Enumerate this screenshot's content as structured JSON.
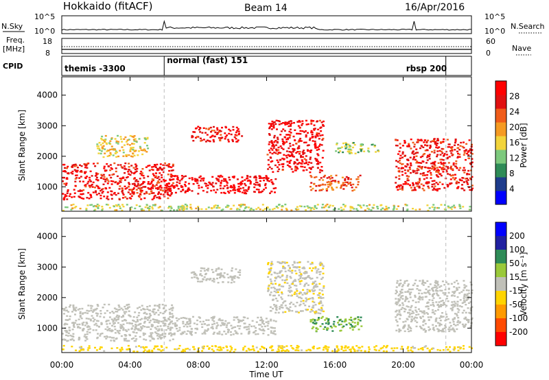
{
  "header": {
    "station": "Hokkaido (fitACF)",
    "beam": "Beam 14",
    "date": "16/Apr/2016"
  },
  "panels": {
    "nsky": {
      "label": "N.Sky",
      "left_ticks": [
        "10^5",
        "10^0"
      ],
      "right_ticks": [
        "10^5",
        "10^0"
      ],
      "right_label": "N.Search"
    },
    "freq": {
      "label_top": "Freq.",
      "label_bottom": "[MHz]",
      "left_ticks": [
        "18",
        "8"
      ],
      "right_ticks": [
        "60",
        "0"
      ],
      "right_label": "Nave"
    },
    "cpid": {
      "label": "CPID",
      "entries": [
        {
          "text": "themis -3300",
          "start_hour": 0
        },
        {
          "text": "normal (fast) 151",
          "start_hour": 6
        },
        {
          "text": "rbsp 200",
          "start_hour": 22.5
        }
      ]
    }
  },
  "colors": {
    "power": [
      "#0000ff",
      "#1e3c8c",
      "#2e8b57",
      "#7dc97d",
      "#f2d43b",
      "#f59a22",
      "#f05c1a",
      "#e01010",
      "#ff0000"
    ],
    "velocity": [
      "#ff0000",
      "#ff4a00",
      "#ff9a00",
      "#ffd400",
      "#c0c0b8",
      "#9ac93a",
      "#2e8b57",
      "#2020a0",
      "#0000ff"
    ]
  },
  "chart_data": [
    {
      "type": "heatmap",
      "title": "",
      "xlabel": "Time UT",
      "ylabel": "Slant Range [km]",
      "x_ticks": [
        "00:00",
        "04:00",
        "08:00",
        "12:00",
        "16:00",
        "20:00",
        "00:00"
      ],
      "xlim_hours": [
        0,
        24
      ],
      "ylim": [
        200,
        4600
      ],
      "y_ticks": [
        1000,
        2000,
        3000,
        4000
      ],
      "colorbar": {
        "label": "Power [dB]",
        "ticks": [
          "4",
          "8",
          "12",
          "16",
          "20",
          "24",
          "28"
        ],
        "range": [
          0,
          30
        ]
      },
      "regions": [
        {
          "t0": 0,
          "t1": 6.5,
          "r0": 600,
          "r1": 1800,
          "level": 26
        },
        {
          "t0": 6,
          "t1": 12.5,
          "r0": 800,
          "r1": 1400,
          "level": 28
        },
        {
          "t0": 12,
          "t1": 15.3,
          "r0": 1500,
          "r1": 3200,
          "level": 27
        },
        {
          "t0": 7.5,
          "t1": 10.5,
          "r0": 2500,
          "r1": 3000,
          "level": 26
        },
        {
          "t0": 14.5,
          "t1": 17.5,
          "r0": 900,
          "r1": 1400,
          "level": 22
        },
        {
          "t0": 19.5,
          "t1": 24,
          "r0": 900,
          "r1": 2600,
          "level": 25
        },
        {
          "t0": 2,
          "t1": 5,
          "r0": 2000,
          "r1": 2700,
          "level": 16
        },
        {
          "t0": 16,
          "t1": 18.5,
          "r0": 2100,
          "r1": 2500,
          "level": 12
        },
        {
          "t0": 0,
          "t1": 24,
          "r0": 250,
          "r1": 450,
          "level": 14
        }
      ]
    },
    {
      "type": "heatmap",
      "title": "",
      "xlabel": "Time UT",
      "ylabel": "Slant Range [km]",
      "x_ticks": [
        "00:00",
        "04:00",
        "08:00",
        "12:00",
        "16:00",
        "20:00",
        "00:00"
      ],
      "xlim_hours": [
        0,
        24
      ],
      "ylim": [
        200,
        4600
      ],
      "y_ticks": [
        1000,
        2000,
        3000,
        4000
      ],
      "colorbar": {
        "label": "Velocity [m s⁻¹]",
        "ticks": [
          "200",
          "100",
          "50",
          "15",
          "-15",
          "-50",
          "-100",
          "-200"
        ],
        "range": [
          -250,
          250
        ]
      },
      "regions": [
        {
          "t0": 0,
          "t1": 6.5,
          "r0": 600,
          "r1": 1800,
          "level": 0
        },
        {
          "t0": 6,
          "t1": 12.5,
          "r0": 800,
          "r1": 1400,
          "level": 0
        },
        {
          "t0": 12,
          "t1": 15.3,
          "r0": 1500,
          "r1": 3200,
          "level": -20
        },
        {
          "t0": 7.5,
          "t1": 10.5,
          "r0": 2500,
          "r1": 3000,
          "level": -10
        },
        {
          "t0": 14.5,
          "t1": 17.5,
          "r0": 900,
          "r1": 1400,
          "level": 80
        },
        {
          "t0": 19.5,
          "t1": 24,
          "r0": 900,
          "r1": 2600,
          "level": 0
        },
        {
          "t0": 0,
          "t1": 24,
          "r0": 250,
          "r1": 450,
          "level": -40
        }
      ]
    }
  ]
}
